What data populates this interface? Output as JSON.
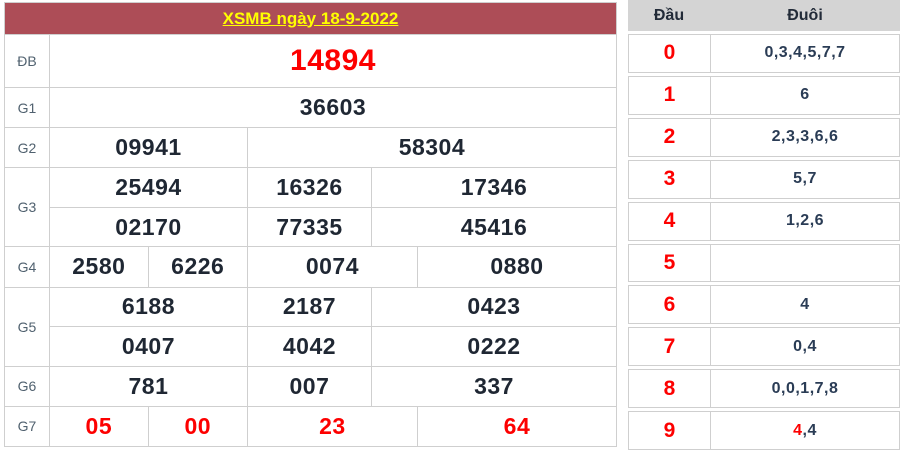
{
  "result_table": {
    "title": "XSMB ngày 18-9-2022",
    "rows": {
      "db": {
        "label": "ĐB",
        "value": "14894"
      },
      "g1": {
        "label": "G1",
        "value": "36603"
      },
      "g2": {
        "label": "G2",
        "cells": [
          "09941",
          "58304"
        ]
      },
      "g3": {
        "label": "G3",
        "row1": [
          "25494",
          "16326",
          "17346"
        ],
        "row2": [
          "02170",
          "77335",
          "45416"
        ]
      },
      "g4": {
        "label": "G4",
        "cells": [
          "2580",
          "6226",
          "0074",
          "0880"
        ]
      },
      "g5": {
        "label": "G5",
        "row1": [
          "6188",
          "2187",
          "0423"
        ],
        "row2": [
          "0407",
          "4042",
          "0222"
        ]
      },
      "g6": {
        "label": "G6",
        "cells": [
          "781",
          "007",
          "337"
        ]
      },
      "g7": {
        "label": "G7",
        "cells": [
          "05",
          "00",
          "23",
          "64"
        ]
      }
    }
  },
  "head_tail_table": {
    "headers": {
      "head": "Đầu",
      "tail": "Đuôi"
    },
    "rows": [
      {
        "head": "0",
        "tail_red": "",
        "tail": "0,3,4,5,7,7"
      },
      {
        "head": "1",
        "tail_red": "",
        "tail": "6"
      },
      {
        "head": "2",
        "tail_red": "",
        "tail": "2,3,3,6,6"
      },
      {
        "head": "3",
        "tail_red": "",
        "tail": "5,7"
      },
      {
        "head": "4",
        "tail_red": "",
        "tail": "1,2,6"
      },
      {
        "head": "5",
        "tail_red": "",
        "tail": ""
      },
      {
        "head": "6",
        "tail_red": "",
        "tail": "4"
      },
      {
        "head": "7",
        "tail_red": "",
        "tail": "0,4"
      },
      {
        "head": "8",
        "tail_red": "",
        "tail": "0,0,1,7,8"
      },
      {
        "head": "9",
        "tail_red": "4",
        "tail": ",4"
      }
    ]
  },
  "colors": {
    "title_bg": "#ad4d57",
    "title_text": "#ffff00",
    "highlight_red": "#fd0000",
    "number_dark": "#1f2733",
    "tail_navy": "#2a3c55",
    "border": "#cfcfcf",
    "header_bg": "#d4d4d4"
  }
}
